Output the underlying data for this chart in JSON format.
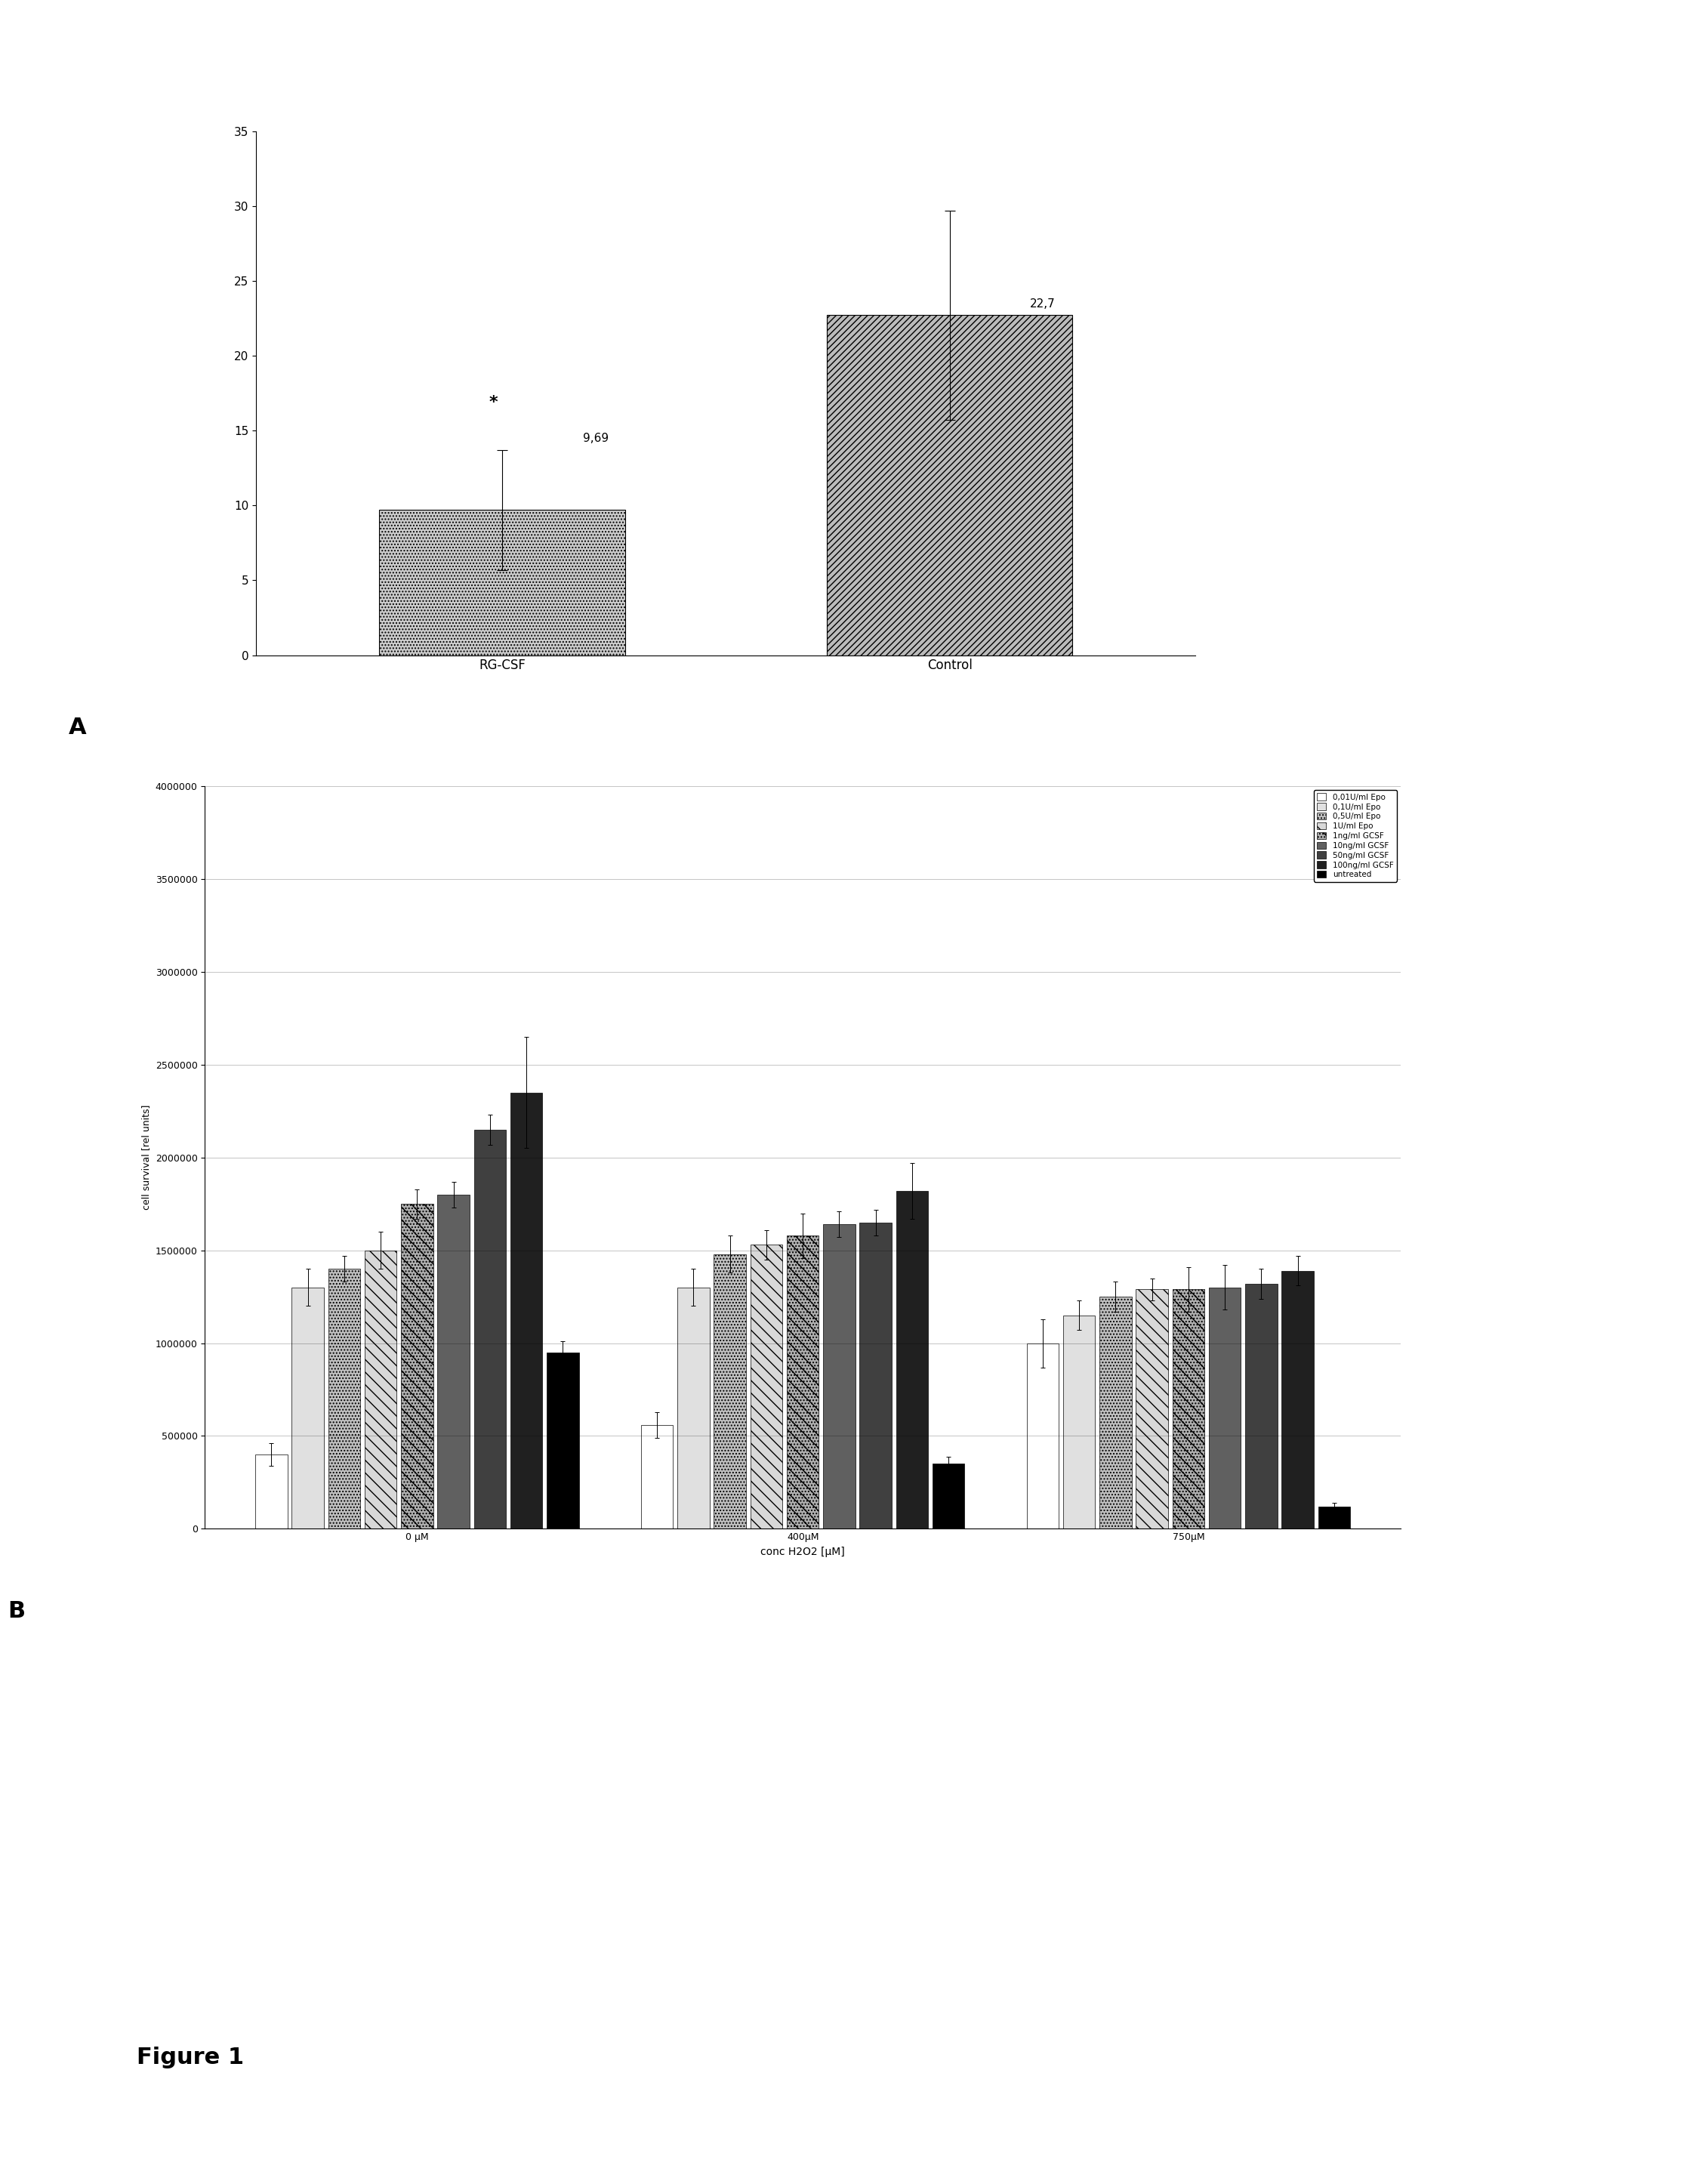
{
  "panel_A": {
    "categories": [
      "RG-CSF",
      "Control"
    ],
    "values": [
      9.69,
      22.7
    ],
    "errors": [
      4.0,
      7.0
    ],
    "ylim": [
      0,
      35
    ],
    "yticks": [
      0,
      5,
      10,
      15,
      20,
      25,
      30,
      35
    ],
    "hatches_A": [
      "....",
      "////"
    ],
    "facecolors_A": [
      "#cccccc",
      "#bbbbbb"
    ],
    "annotation_star": "*",
    "value_labels": [
      "9,69",
      "22,7"
    ],
    "label": "A"
  },
  "panel_B": {
    "groups": [
      "0 μM",
      "400μM",
      "750μM"
    ],
    "xlabel": "conc H2O2 [μM]",
    "ylabel": "cell survival [rel units]",
    "ylim": [
      0,
      4000000
    ],
    "yticks": [
      0,
      500000,
      1000000,
      1500000,
      2000000,
      2500000,
      3000000,
      3500000,
      4000000
    ],
    "xtick_labels": [
      "0 μM",
      "400μM",
      "750μM"
    ],
    "legend_labels": [
      "0,01U/ml Epo",
      "0,1U/ml Epo",
      "0,5U/ml Epo",
      "1U/ml Epo",
      "1ng/ml GCSF",
      "10ng/ml GCSF",
      "50ng/ml GCSF",
      "100ng/ml GCSF",
      "untreated"
    ],
    "facecolors_B": [
      "#ffffff",
      "#ffffff",
      "#cccccc",
      "#ffffff",
      "#aaaaaa",
      "#555555",
      "#333333",
      "#111111",
      "#000000"
    ],
    "hatches_B": [
      "",
      "",
      "....",
      "\\\\\\\\",
      "...\\\\",
      "",
      "",
      "",
      ""
    ],
    "values": [
      [
        400000,
        1300000,
        1400000,
        1500000,
        1750000,
        1800000,
        2150000,
        2350000,
        950000
      ],
      [
        560000,
        1300000,
        1480000,
        1530000,
        1580000,
        1640000,
        1650000,
        1820000,
        350000
      ],
      [
        1000000,
        1150000,
        1250000,
        1290000,
        1290000,
        1300000,
        1320000,
        1390000,
        120000
      ]
    ],
    "errors": [
      [
        60000,
        100000,
        70000,
        100000,
        80000,
        70000,
        80000,
        300000,
        60000
      ],
      [
        70000,
        100000,
        100000,
        80000,
        120000,
        70000,
        70000,
        150000,
        40000
      ],
      [
        130000,
        80000,
        80000,
        60000,
        120000,
        120000,
        80000,
        80000,
        20000
      ]
    ],
    "label": "B"
  },
  "figure_label": "Figure 1",
  "background_color": "#ffffff"
}
